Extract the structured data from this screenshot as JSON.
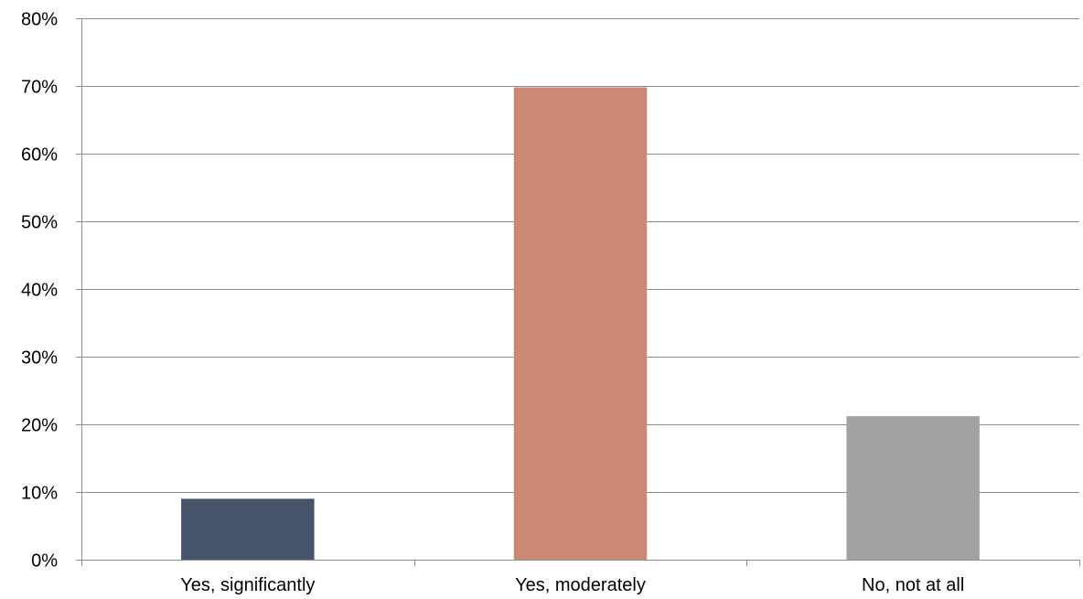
{
  "chart_data": {
    "type": "bar",
    "categories": [
      "Yes, significantly",
      "Yes, moderately",
      "No, not at all"
    ],
    "values": [
      9.0,
      69.8,
      21.2
    ],
    "colors": [
      "#46546B",
      "#CB8872",
      "#A1A3A0"
    ],
    "ylim": [
      0,
      80
    ],
    "y_ticks": [
      0,
      10,
      20,
      30,
      40,
      50,
      60,
      70,
      80
    ],
    "y_tick_labels": [
      "0%",
      "10%",
      "20%",
      "30%",
      "40%",
      "50%",
      "60%",
      "70%",
      "80%"
    ],
    "grid": true,
    "title": "",
    "xlabel": "",
    "ylabel": ""
  }
}
